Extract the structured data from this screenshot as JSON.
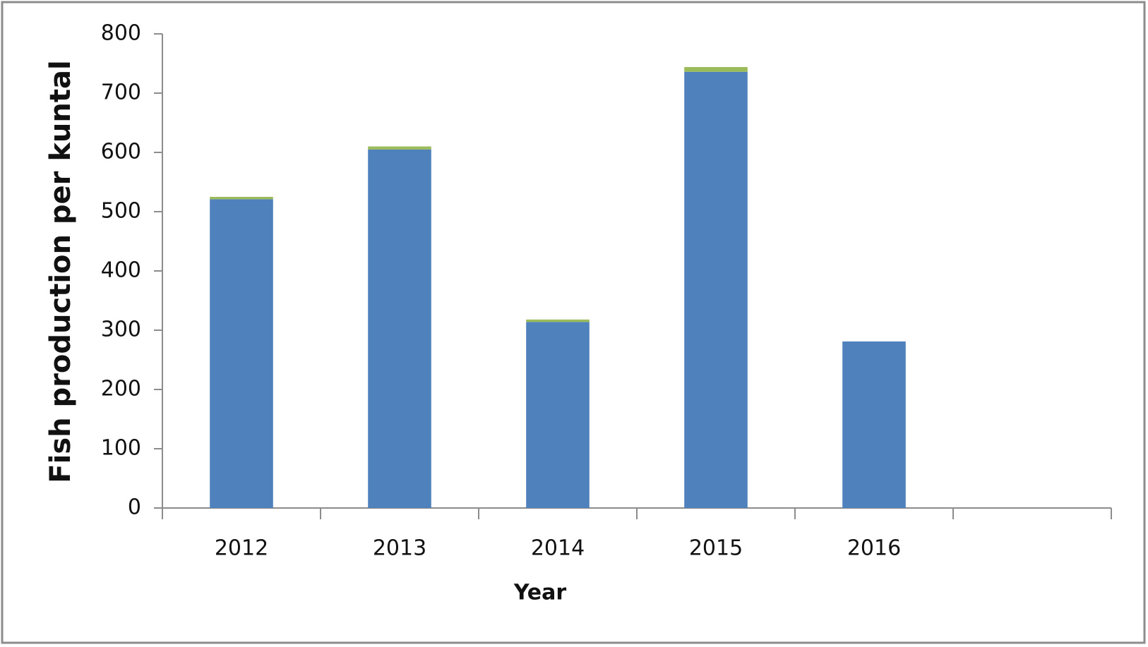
{
  "chart_data": {
    "type": "stacked_bar",
    "y_label": "Fish production per kuntal",
    "x_label": "Year",
    "categories": [
      "2012",
      "2013",
      "2014",
      "2015",
      "2016",
      null
    ],
    "series": [
      {
        "color": "#4f81bd",
        "values": [
          521,
          605,
          314,
          736,
          281,
          null
        ]
      },
      {
        "color": "#9bbb59",
        "values": [
          4,
          5,
          4,
          8,
          0,
          null
        ]
      }
    ],
    "ylim": [
      0,
      800
    ],
    "yticks": [
      0,
      100,
      200,
      300,
      400,
      500,
      600,
      700,
      800
    ],
    "grid": false
  }
}
